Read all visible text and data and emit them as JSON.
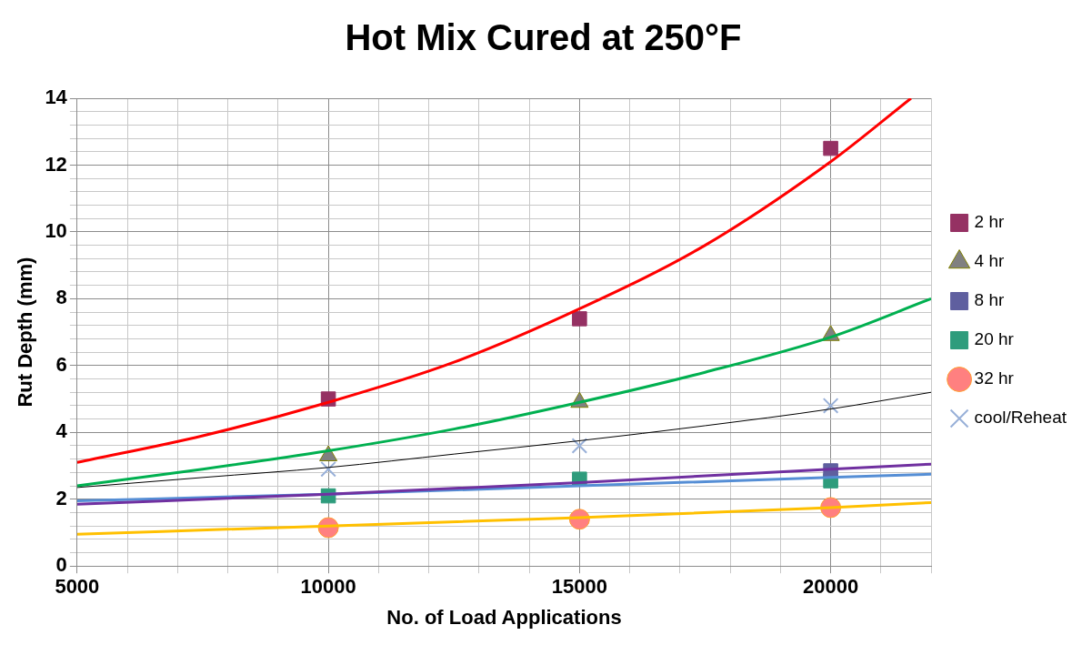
{
  "chart_data": {
    "type": "scatter",
    "title": "Hot Mix Cured at 250°F",
    "xlabel": "No. of Load Applications",
    "ylabel": "Rut Depth (mm)",
    "xlim": [
      5000,
      22000
    ],
    "ylim": [
      0,
      14
    ],
    "xticks": [
      5000,
      {
        "value": 6000,
        "label": null
      },
      {
        "value": 7000,
        "label": null
      },
      {
        "value": 8000,
        "label": null
      },
      {
        "value": 9000,
        "label": null
      },
      10000,
      {
        "value": 11000,
        "label": null
      },
      {
        "value": 12000,
        "label": null
      },
      {
        "value": 13000,
        "label": null
      },
      {
        "value": 14000,
        "label": null
      },
      15000,
      {
        "value": 16000,
        "label": null
      },
      {
        "value": 17000,
        "label": null
      },
      {
        "value": 18000,
        "label": null
      },
      {
        "value": 19000,
        "label": null
      },
      20000,
      {
        "value": 21000,
        "label": null
      },
      {
        "value": 22000,
        "label": null
      }
    ],
    "yticks": [
      0,
      {
        "value": 0.4,
        "label": null
      },
      {
        "value": 0.8,
        "label": null
      },
      {
        "value": 1.2,
        "label": null
      },
      {
        "value": 1.6,
        "label": null
      },
      2,
      {
        "value": 2.4,
        "label": null
      },
      {
        "value": 2.8,
        "label": null
      },
      {
        "value": 3.2,
        "label": null
      },
      {
        "value": 3.6,
        "label": null
      },
      4,
      {
        "value": 4.4,
        "label": null
      },
      {
        "value": 4.8,
        "label": null
      },
      {
        "value": 5.2,
        "label": null
      },
      {
        "value": 5.6,
        "label": null
      },
      6,
      {
        "value": 6.4,
        "label": null
      },
      {
        "value": 6.8,
        "label": null
      },
      {
        "value": 7.2,
        "label": null
      },
      {
        "value": 7.6,
        "label": null
      },
      8,
      {
        "value": 8.4,
        "label": null
      },
      {
        "value": 8.8,
        "label": null
      },
      {
        "value": 9.2,
        "label": null
      },
      {
        "value": 9.6,
        "label": null
      },
      10,
      {
        "value": 10.4,
        "label": null
      },
      {
        "value": 10.8,
        "label": null
      },
      {
        "value": 11.2,
        "label": null
      },
      {
        "value": 11.6,
        "label": null
      },
      12,
      {
        "value": 12.4,
        "label": null
      },
      {
        "value": 12.8,
        "label": null
      },
      {
        "value": 13.2,
        "label": null
      },
      {
        "value": 13.6,
        "label": null
      },
      14
    ],
    "grid": true,
    "legend": "right",
    "x": [
      10000,
      15000,
      20000
    ],
    "series": [
      {
        "name": "2 hr",
        "type": "scatter",
        "marker": "square",
        "color": "#953163",
        "values": [
          5.0,
          7.4,
          12.5
        ]
      },
      {
        "name": "4 hr",
        "type": "scatter",
        "marker": "triangle",
        "color": "#808080",
        "values": [
          3.3,
          4.9,
          6.9
        ]
      },
      {
        "name": "8 hr",
        "type": "scatter",
        "marker": "square",
        "color": "#5f5f9f",
        "values": [
          null,
          null,
          2.85
        ]
      },
      {
        "name": "20 hr",
        "type": "scatter",
        "marker": "square",
        "color": "#2e9c7c",
        "values": [
          2.1,
          2.6,
          2.55
        ]
      },
      {
        "name": "32 hr",
        "type": "scatter",
        "marker": "circle",
        "color": "#ff8080",
        "values": [
          1.15,
          1.4,
          1.75
        ]
      },
      {
        "name": "cool/Reheat",
        "type": "scatter",
        "marker": "cross",
        "color": "#98b0d8",
        "values": [
          2.9,
          3.6,
          4.8
        ]
      },
      {
        "type": "line",
        "marker": "none",
        "color": "#ff0000",
        "x": [
          5000,
          7500,
          10000,
          12500,
          15000,
          17500,
          20000,
          21600
        ],
        "values": [
          3.1,
          3.9,
          4.9,
          6.1,
          7.7,
          9.6,
          12.1,
          14.0
        ]
      },
      {
        "type": "line",
        "marker": "none",
        "color": "#00b050",
        "x": [
          5000,
          7500,
          10000,
          12500,
          15000,
          17500,
          20000,
          22000
        ],
        "values": [
          2.4,
          2.9,
          3.45,
          4.1,
          4.9,
          5.8,
          6.85,
          8.0
        ]
      },
      {
        "type": "line",
        "marker": "none",
        "color": "#7030a0",
        "x": [
          5000,
          10000,
          15000,
          20000,
          22000
        ],
        "values": [
          1.85,
          2.15,
          2.5,
          2.9,
          3.05
        ]
      },
      {
        "type": "line",
        "marker": "none",
        "color": "#558ed5",
        "x": [
          5000,
          10000,
          15000,
          20000,
          22000
        ],
        "values": [
          1.95,
          2.15,
          2.4,
          2.65,
          2.75
        ]
      },
      {
        "type": "line",
        "marker": "none",
        "color": "#ffc000",
        "x": [
          5000,
          10000,
          15000,
          20000,
          22000
        ],
        "values": [
          0.95,
          1.2,
          1.45,
          1.75,
          1.9
        ]
      },
      {
        "type": "line",
        "marker": "none",
        "color": "#000000",
        "x": [
          5000,
          7500,
          10000,
          12500,
          15000,
          17500,
          20000,
          22000
        ],
        "values": [
          2.35,
          2.65,
          2.95,
          3.35,
          3.75,
          4.2,
          4.7,
          5.2
        ]
      }
    ]
  }
}
